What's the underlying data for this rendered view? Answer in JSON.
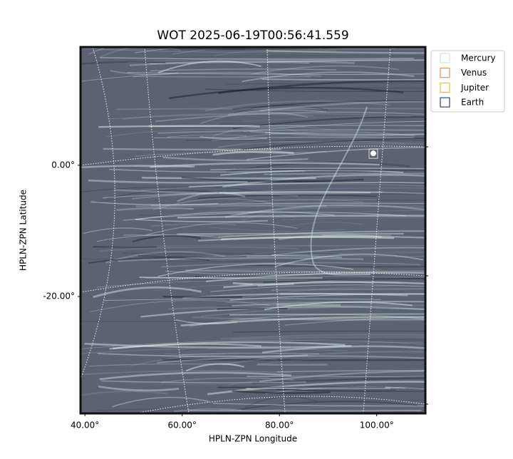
{
  "chart_data": {
    "type": "image",
    "title": "WOT 2025-06-19T00:56:41.559",
    "x_label": "HPLN-ZPN Longitude",
    "y_label": "HPLN-ZPN Latitude",
    "xlim": [
      39.1,
      110
    ],
    "ylim": [
      -37.8,
      18
    ],
    "xticks": [
      {
        "value": 40,
        "label": "40.00°"
      },
      {
        "value": 60,
        "label": "60.00°"
      },
      {
        "value": 80,
        "label": "80.00°"
      },
      {
        "value": 100,
        "label": "100.00°"
      }
    ],
    "yticks": [
      {
        "value": 0,
        "label": "0.00°"
      },
      {
        "value": -20,
        "label": "-20.00°"
      }
    ],
    "legend": "upper right outside",
    "series": [
      {
        "name": "Mercury",
        "color": "#d8d8d8",
        "x": [
          99.3
        ],
        "y": [
          1.7
        ]
      },
      {
        "name": "Venus",
        "color": "#e07b39",
        "x": [],
        "y": []
      },
      {
        "name": "Jupiter",
        "color": "#e8b020",
        "x": [],
        "y": []
      },
      {
        "name": "Earth",
        "color": "#1a1a7a",
        "x": [],
        "y": []
      }
    ]
  }
}
